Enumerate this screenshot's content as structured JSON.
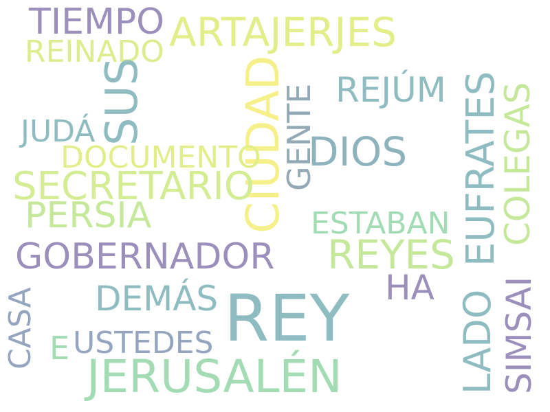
{
  "words": {
    "tiempo": "TIEMPO",
    "artajerjes": "ARTAJERJES",
    "reinado": "REINADO",
    "sus": "SUS",
    "ciudad": "CIUDAD",
    "rejum": "REJÚM",
    "juda": "JUDÁ",
    "gente": "GENTE",
    "eufrates": "EUFRATES",
    "colegas": "COLEGAS",
    "dios": "DIOS",
    "documento": "DOCUMENTO",
    "secretario": "SECRETARIO",
    "persia": "PERSIA",
    "estaban": "ESTABAN",
    "gobernador": "GOBERNADOR",
    "reyes": "REYES",
    "ha": "HA",
    "demas": "DEMÁS",
    "rey": "REY",
    "casa": "CASA",
    "lado": "LADO",
    "simsai": "SIMSAI",
    "e": "E",
    "ustedes": "USTEDES",
    "jerusalen": "JERUSALÉN"
  },
  "colors": {
    "purple": "#9b8fbb",
    "teal": "#8fbcc1",
    "yellow_green": "#e2ee8a",
    "light_green": "#c6e89a",
    "mint": "#a3dcb4",
    "yellow": "#f5f08a",
    "slate": "#95a5c0"
  },
  "word_colors": {
    "tiempo": "#9b8fbb",
    "artajerjes": "#e2ee8a",
    "reinado": "#dcec8e",
    "sus": "#8fbcc1",
    "ciudad": "#f5f08a",
    "rejum": "#8fbcc1",
    "juda": "#8fbcc1",
    "gente": "#93aab6",
    "eufrates": "#8fbcc1",
    "colegas": "#c6e89a",
    "dios": "#8fb3bd",
    "documento": "#e2ee8a",
    "secretario": "#d4ec94",
    "persia": "#c6e89a",
    "estaban": "#a3dcb4",
    "gobernador": "#9b8fbb",
    "reyes": "#c6e89a",
    "ha": "#9b8fbb",
    "demas": "#8fbcc1",
    "rey": "#8fbcc1",
    "casa": "#95a5c0",
    "lado": "#8fbcc1",
    "simsai": "#9b8fbb",
    "e": "#a3dcb4",
    "ustedes": "#95a5c0",
    "jerusalen": "#a3dcb4"
  }
}
